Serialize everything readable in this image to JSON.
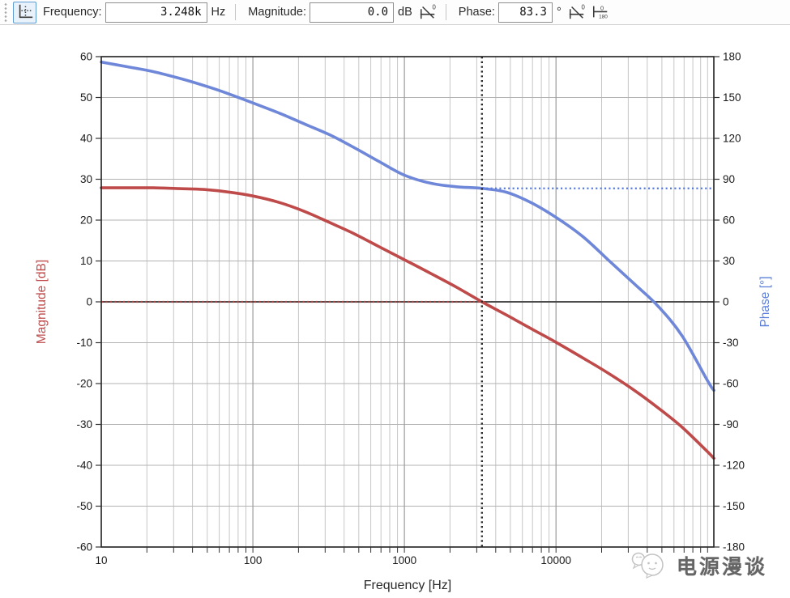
{
  "toolbar": {
    "cursor_button": {
      "icon": "axes-cursor-icon",
      "state": "active"
    },
    "fields": [
      {
        "label": "Frequency:",
        "value": "3.248k",
        "unit": "Hz"
      },
      {
        "label": "Magnitude:",
        "value": "0.0",
        "unit": "dB"
      },
      {
        "label": "Phase:",
        "value": "83.3",
        "unit": "°"
      }
    ],
    "goto_zero_db_icon": "curve-zero-crossing-icon",
    "goto_zero_phase_icon": "curve-zero-crossing-icon",
    "phase_range_icon": "zero-over-180-icon"
  },
  "chart_data": {
    "type": "line",
    "xlabel": "Frequency [Hz]",
    "x_scale": "log",
    "x_range": [
      10,
      110000
    ],
    "x_major_ticks": [
      {
        "value": 10,
        "label": "10"
      },
      {
        "value": 100,
        "label": "100"
      },
      {
        "value": 1000,
        "label": "1000"
      },
      {
        "value": 10000,
        "label": "10000"
      }
    ],
    "grid": true,
    "left_axis": {
      "label": "Magnitude [dB]",
      "color": "#bf4a4a",
      "range": [
        -60,
        60
      ],
      "ticks": [
        60,
        50,
        40,
        30,
        20,
        10,
        0,
        -10,
        -20,
        -30,
        -40,
        -50,
        -60
      ]
    },
    "right_axis": {
      "label": "Phase [°]",
      "color": "#5b7fd8",
      "range": [
        -180,
        180
      ],
      "ticks": [
        180,
        150,
        120,
        90,
        60,
        30,
        0,
        -30,
        -60,
        -90,
        -120,
        -150,
        -180
      ]
    },
    "frequencies": [
      10,
      15,
      22,
      33,
      47,
      68,
      100,
      150,
      220,
      330,
      470,
      680,
      1000,
      1500,
      2200,
      3248,
      4700,
      6800,
      10000,
      15000,
      22000,
      33000,
      47000,
      68000,
      100000,
      110000
    ],
    "series": [
      {
        "name": "Magnitude",
        "axis": "left",
        "color": "#bf4a4a",
        "values": [
          27.9,
          27.9,
          27.9,
          27.7,
          27.5,
          26.9,
          25.9,
          24.3,
          22.1,
          19.2,
          16.6,
          13.5,
          10.3,
          6.9,
          3.6,
          0.0,
          -3.2,
          -6.5,
          -9.9,
          -13.7,
          -17.4,
          -21.7,
          -25.9,
          -30.7,
          -36.7,
          -38.3
        ]
      },
      {
        "name": "Phase",
        "axis": "right",
        "color": "#6f87d8",
        "values": [
          176,
          172.5,
          169,
          164,
          159,
          153,
          146,
          138.5,
          130.5,
          122,
          113,
          103,
          93,
          87,
          84.5,
          83.3,
          80.5,
          73,
          62,
          48,
          31,
          13,
          -3,
          -25,
          -58,
          -65
        ]
      }
    ],
    "cursor": {
      "frequency_hz": 3248,
      "magnitude_db": 0.0,
      "phase_deg": 83.3,
      "color": "#2b2b2b"
    },
    "reference_lines": [
      {
        "axis": "left",
        "value": 0.0,
        "color": "#b04545",
        "style": "dotted",
        "from_x": 10,
        "to_x": 3248
      },
      {
        "axis": "right",
        "value": 83.3,
        "color": "#5b7fe0",
        "style": "dotted",
        "from_x": 3248,
        "to_x": 110000
      }
    ]
  },
  "watermark": {
    "text": "电源漫谈",
    "logo": "chat-face-logo"
  }
}
